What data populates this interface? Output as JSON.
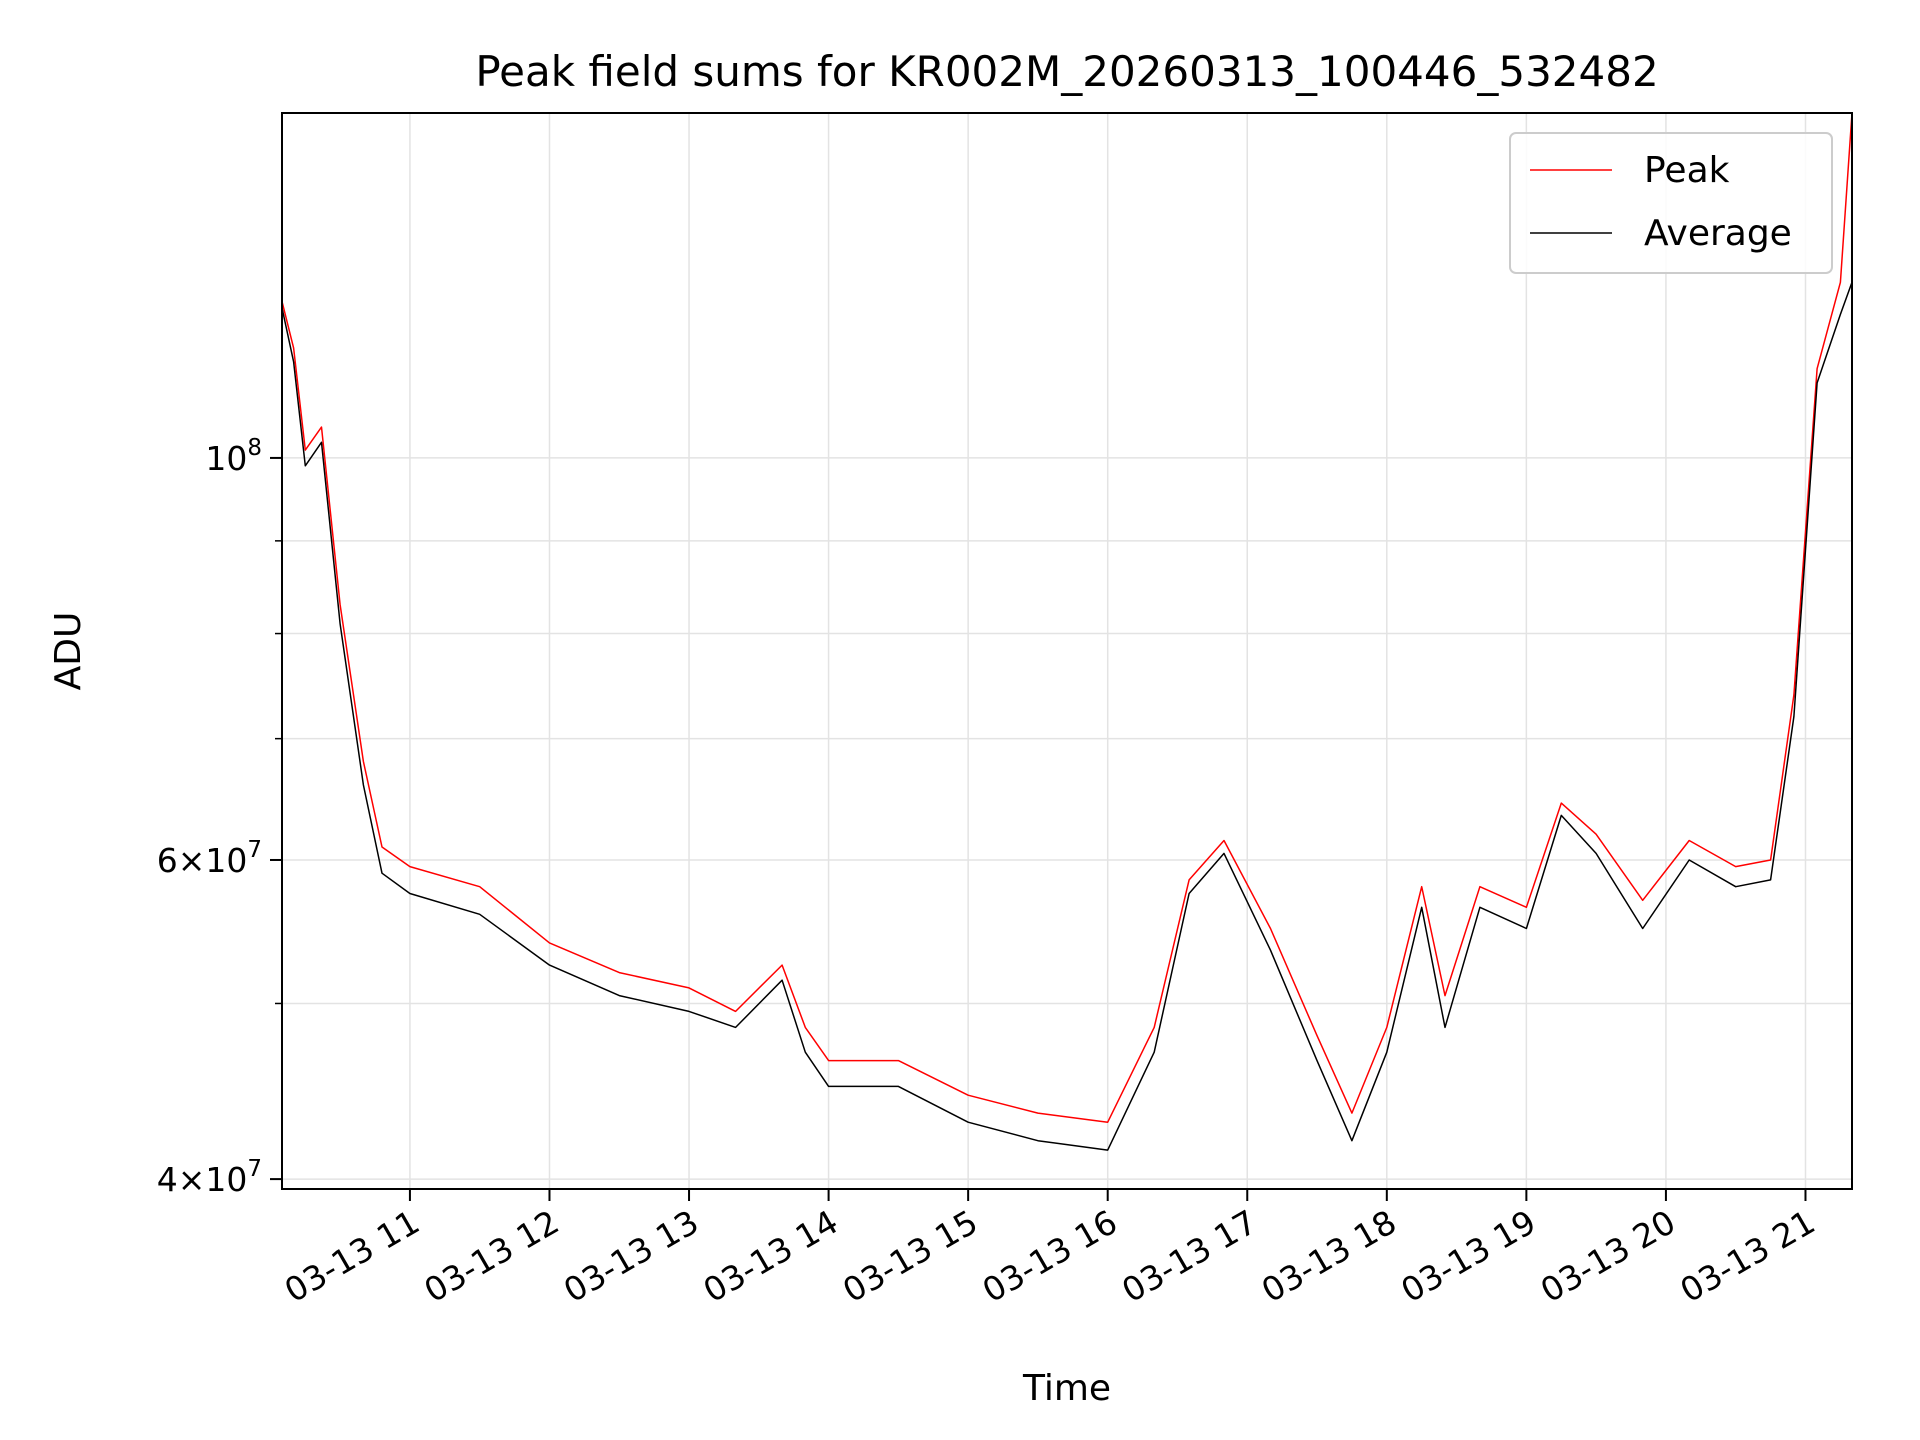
{
  "chart_data": {
    "type": "line",
    "title": "Peak field sums for KR002M_20260313_100446_532482",
    "xlabel": "Time",
    "ylabel": "ADU",
    "yscale": "log",
    "ylim": [
      39500000,
      155000000
    ],
    "xlim": [
      "2026-03-13T10:05",
      "2026-03-13T21:20"
    ],
    "x_ticks": [
      "03-13 11",
      "03-13 12",
      "03-13 13",
      "03-13 14",
      "03-13 15",
      "03-13 16",
      "03-13 17",
      "03-13 18",
      "03-13 19",
      "03-13 20",
      "03-13 21"
    ],
    "y_ticks": [
      {
        "value": 40000000,
        "mantissa": "4",
        "exponent": "7"
      },
      {
        "value": 60000000,
        "mantissa": "6",
        "exponent": "7"
      },
      {
        "value": 100000000,
        "mantissa": "",
        "exponent": "8"
      }
    ],
    "grid": true,
    "legend_position": "top-right",
    "series": [
      {
        "name": "Peak",
        "color": "#ff0000",
        "x": [
          "2026-03-13T10:05",
          "2026-03-13T10:10",
          "2026-03-13T10:15",
          "2026-03-13T10:22",
          "2026-03-13T10:30",
          "2026-03-13T10:40",
          "2026-03-13T10:48",
          "2026-03-13T11:00",
          "2026-03-13T11:30",
          "2026-03-13T12:00",
          "2026-03-13T12:30",
          "2026-03-13T13:00",
          "2026-03-13T13:20",
          "2026-03-13T13:40",
          "2026-03-13T13:50",
          "2026-03-13T14:00",
          "2026-03-13T14:30",
          "2026-03-13T15:00",
          "2026-03-13T15:30",
          "2026-03-13T16:00",
          "2026-03-13T16:20",
          "2026-03-13T16:35",
          "2026-03-13T16:50",
          "2026-03-13T17:10",
          "2026-03-13T17:30",
          "2026-03-13T17:45",
          "2026-03-13T18:00",
          "2026-03-13T18:15",
          "2026-03-13T18:25",
          "2026-03-13T18:40",
          "2026-03-13T19:00",
          "2026-03-13T19:15",
          "2026-03-13T19:30",
          "2026-03-13T19:50",
          "2026-03-13T20:10",
          "2026-03-13T20:30",
          "2026-03-13T20:45",
          "2026-03-13T20:55",
          "2026-03-13T21:05",
          "2026-03-13T21:15",
          "2026-03-13T21:20"
        ],
        "y": [
          122000000,
          115000000,
          101000000,
          104000000,
          83000000,
          68000000,
          61000000,
          59500000,
          58000000,
          54000000,
          52000000,
          51000000,
          49500000,
          52500000,
          48500000,
          46500000,
          46500000,
          44500000,
          43500000,
          43000000,
          48500000,
          58500000,
          61500000,
          55000000,
          48000000,
          43500000,
          48500000,
          58000000,
          50500000,
          58000000,
          56500000,
          64500000,
          62000000,
          57000000,
          61500000,
          59500000,
          60000000,
          74000000,
          112000000,
          125000000,
          155000000
        ]
      },
      {
        "name": "Average",
        "color": "#000000",
        "x": [
          "2026-03-13T10:05",
          "2026-03-13T10:10",
          "2026-03-13T10:15",
          "2026-03-13T10:22",
          "2026-03-13T10:30",
          "2026-03-13T10:40",
          "2026-03-13T10:48",
          "2026-03-13T11:00",
          "2026-03-13T11:30",
          "2026-03-13T12:00",
          "2026-03-13T12:30",
          "2026-03-13T13:00",
          "2026-03-13T13:20",
          "2026-03-13T13:40",
          "2026-03-13T13:50",
          "2026-03-13T14:00",
          "2026-03-13T14:30",
          "2026-03-13T15:00",
          "2026-03-13T15:30",
          "2026-03-13T16:00",
          "2026-03-13T16:20",
          "2026-03-13T16:35",
          "2026-03-13T16:50",
          "2026-03-13T17:10",
          "2026-03-13T17:30",
          "2026-03-13T17:45",
          "2026-03-13T18:00",
          "2026-03-13T18:15",
          "2026-03-13T18:25",
          "2026-03-13T18:40",
          "2026-03-13T19:00",
          "2026-03-13T19:15",
          "2026-03-13T19:30",
          "2026-03-13T19:50",
          "2026-03-13T20:10",
          "2026-03-13T20:30",
          "2026-03-13T20:45",
          "2026-03-13T20:55",
          "2026-03-13T21:05",
          "2026-03-13T21:15",
          "2026-03-13T21:20"
        ],
        "y": [
          121000000,
          113000000,
          99000000,
          102000000,
          81000000,
          66000000,
          59000000,
          57500000,
          56000000,
          52500000,
          50500000,
          49500000,
          48500000,
          51500000,
          47000000,
          45000000,
          45000000,
          43000000,
          42000000,
          41500000,
          47000000,
          57500000,
          60500000,
          53500000,
          46500000,
          42000000,
          47000000,
          56500000,
          48500000,
          56500000,
          55000000,
          63500000,
          60500000,
          55000000,
          60000000,
          58000000,
          58500000,
          72000000,
          110000000,
          120000000,
          125000000
        ]
      }
    ]
  }
}
